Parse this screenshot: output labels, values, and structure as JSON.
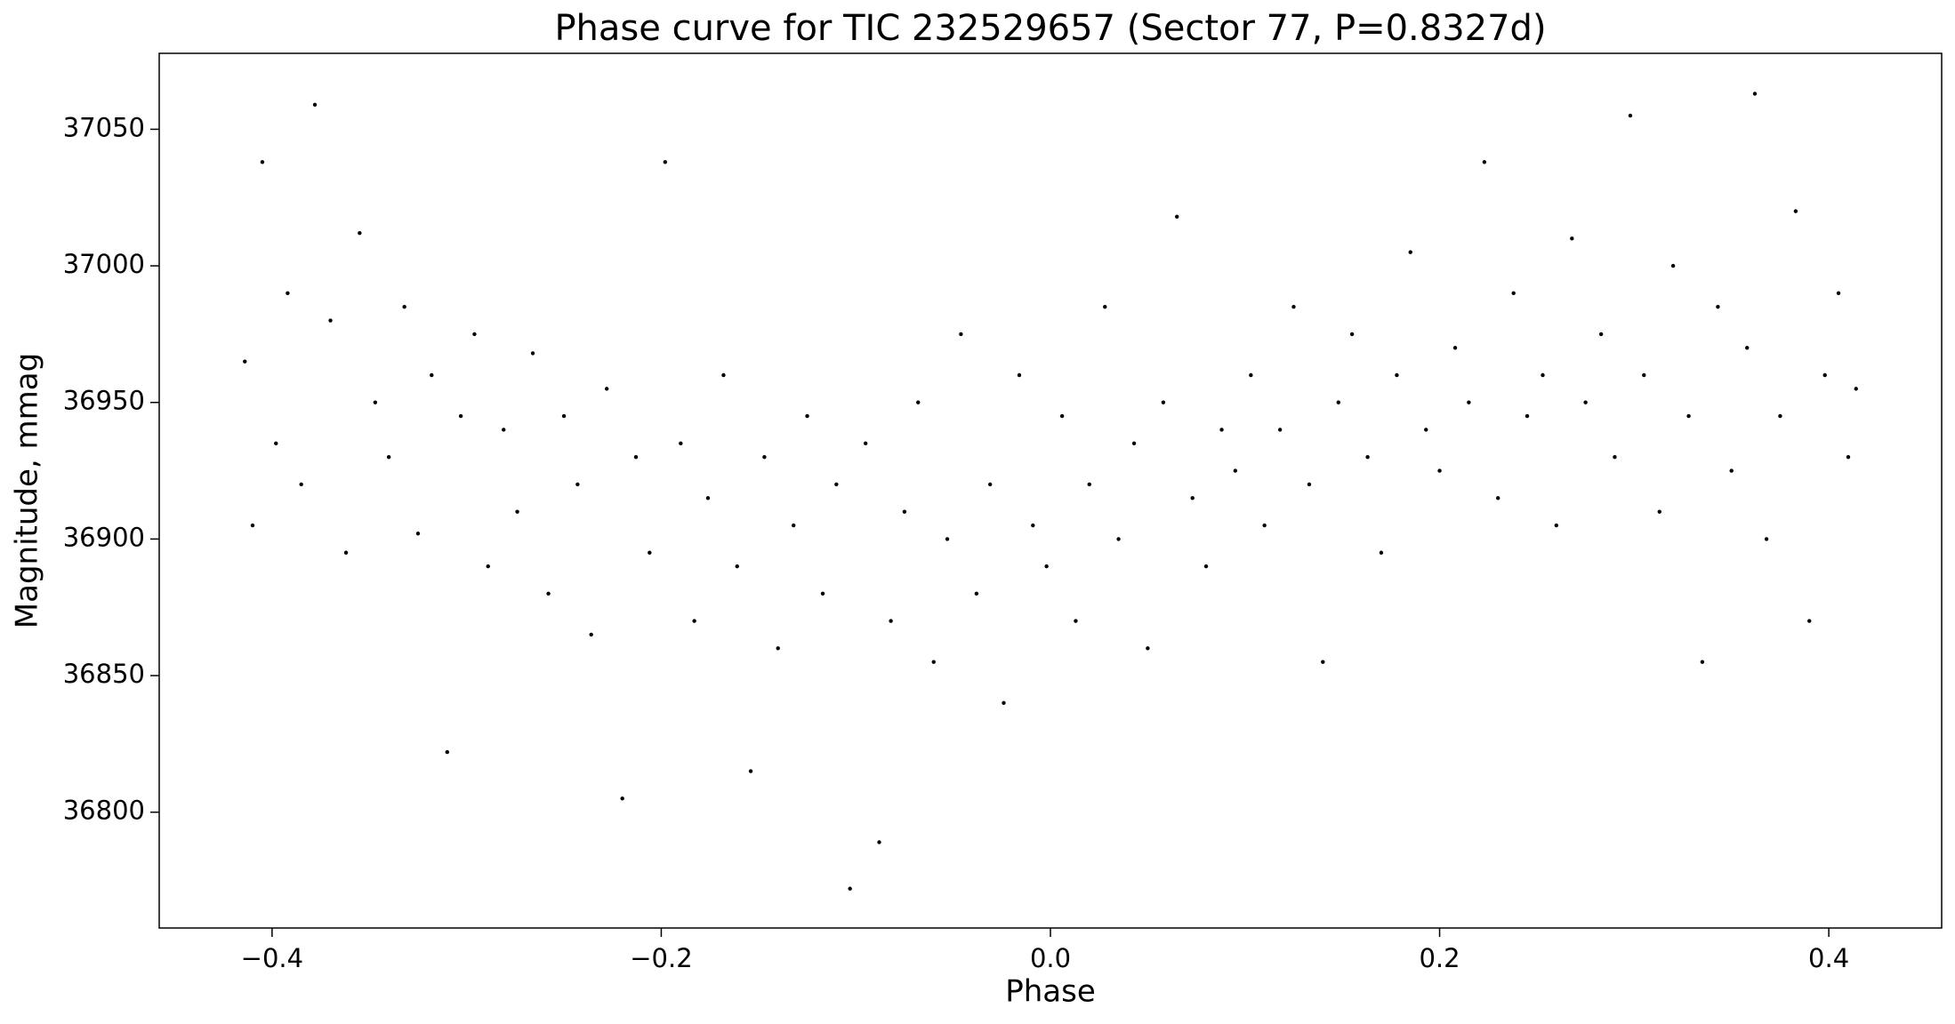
{
  "chart_data": {
    "type": "scatter",
    "title": "Phase curve for TIC 232529657 (Sector 77, P=0.8327d)",
    "xlabel": "Phase",
    "ylabel": "Magnitude, mmag",
    "xlim": [
      -0.458,
      0.458
    ],
    "ylim": [
      36757.6,
      37077.8
    ],
    "xticks": [
      {
        "value": -0.4,
        "label": "−0.4"
      },
      {
        "value": -0.2,
        "label": "−0.2"
      },
      {
        "value": 0,
        "label": "0.0"
      },
      {
        "value": 0.2,
        "label": "0.2"
      },
      {
        "value": 0.4,
        "label": "0.4"
      }
    ],
    "yticks": [
      36800,
      36850,
      36900,
      36950,
      37000,
      37050
    ],
    "grid": false,
    "color": "#000000",
    "x": [
      -0.414,
      -0.41,
      -0.405,
      -0.398,
      -0.392,
      -0.385,
      -0.378,
      -0.37,
      -0.362,
      -0.355,
      -0.347,
      -0.34,
      -0.332,
      -0.325,
      -0.318,
      -0.31,
      -0.303,
      -0.296,
      -0.289,
      -0.281,
      -0.274,
      -0.266,
      -0.258,
      -0.25,
      -0.243,
      -0.236,
      -0.228,
      -0.22,
      -0.213,
      -0.206,
      -0.198,
      -0.19,
      -0.183,
      -0.176,
      -0.168,
      -0.161,
      -0.154,
      -0.147,
      -0.14,
      -0.132,
      -0.125,
      -0.117,
      -0.11,
      -0.103,
      -0.095,
      -0.088,
      -0.082,
      -0.075,
      -0.068,
      -0.06,
      -0.053,
      -0.046,
      -0.038,
      -0.031,
      -0.024,
      -0.016,
      -0.009,
      -0.002,
      0.006,
      0.013,
      0.02,
      0.028,
      0.035,
      0.043,
      0.05,
      0.058,
      0.065,
      0.073,
      0.08,
      0.088,
      0.095,
      0.103,
      0.11,
      0.118,
      0.125,
      0.133,
      0.14,
      0.148,
      0.155,
      0.163,
      0.17,
      0.178,
      0.185,
      0.193,
      0.2,
      0.208,
      0.215,
      0.223,
      0.23,
      0.238,
      0.245,
      0.253,
      0.26,
      0.268,
      0.275,
      0.283,
      0.29,
      0.298,
      0.305,
      0.313,
      0.32,
      0.328,
      0.335,
      0.343,
      0.35,
      0.358,
      0.362,
      0.368,
      0.375,
      0.383,
      0.39,
      0.398,
      0.405,
      0.41,
      0.414
    ],
    "values": [
      36965,
      36905,
      37038,
      36935,
      36990,
      36920,
      37059,
      36980,
      36895,
      37012,
      36950,
      36930,
      36985,
      36902,
      36960,
      36822,
      36945,
      36975,
      36890,
      36940,
      36910,
      36968,
      36880,
      36945,
      36920,
      36865,
      36955,
      36805,
      36930,
      36895,
      37038,
      36935,
      36870,
      36915,
      36960,
      36890,
      36815,
      36930,
      36860,
      36905,
      36945,
      36880,
      36920,
      36772,
      36935,
      36789,
      36870,
      36910,
      36950,
      36855,
      36900,
      36975,
      36880,
      36920,
      36840,
      36960,
      36905,
      36890,
      36945,
      36870,
      36920,
      36985,
      36900,
      36935,
      36860,
      36950,
      37018,
      36915,
      36890,
      36940,
      36925,
      36960,
      36905,
      36940,
      36985,
      36920,
      36855,
      36950,
      36975,
      36930,
      36895,
      36960,
      37005,
      36940,
      36925,
      36970,
      36950,
      37038,
      36915,
      36990,
      36945,
      36960,
      36905,
      37010,
      36950,
      36975,
      36930,
      37055,
      36960,
      36910,
      37000,
      36945,
      36855,
      36985,
      36925,
      36970,
      37063,
      36900,
      36945,
      37020,
      36870,
      36960,
      36990,
      36930,
      36955
    ]
  }
}
